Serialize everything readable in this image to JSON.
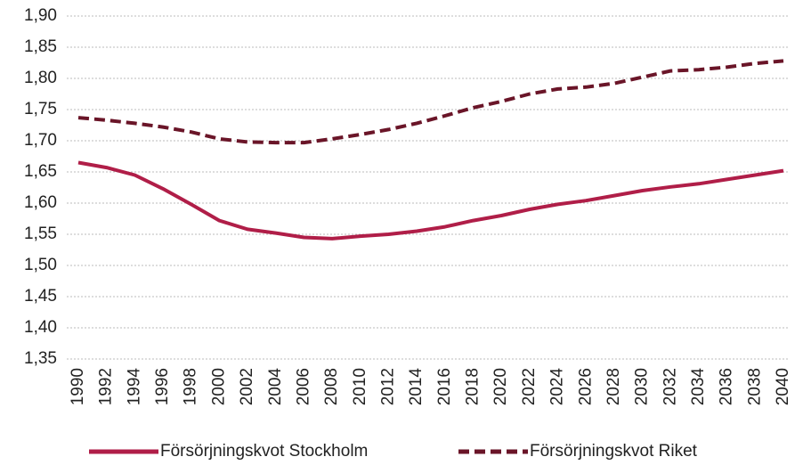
{
  "chart_data": {
    "type": "line",
    "categories": [
      "1990",
      "1992",
      "1994",
      "1996",
      "1998",
      "2000",
      "2002",
      "2004",
      "2006",
      "2008",
      "2010",
      "2012",
      "2014",
      "2016",
      "2018",
      "2020",
      "2022",
      "2024",
      "2026",
      "2028",
      "2030",
      "2032",
      "2034",
      "2036",
      "2038",
      "2040"
    ],
    "series": [
      {
        "name": "Försörjningskvot Stockholm",
        "color": "#b01e48",
        "style": "solid",
        "values": [
          1.665,
          1.657,
          1.645,
          1.623,
          1.598,
          1.572,
          1.558,
          1.552,
          1.545,
          1.543,
          1.547,
          1.55,
          1.555,
          1.562,
          1.572,
          1.58,
          1.59,
          1.598,
          1.604,
          1.612,
          1.62,
          1.626,
          1.631,
          1.638,
          1.645,
          1.652
        ]
      },
      {
        "name": "Försörjningskvot Riket",
        "color": "#6a1528",
        "style": "dashed",
        "values": [
          1.737,
          1.733,
          1.728,
          1.722,
          1.714,
          1.703,
          1.698,
          1.697,
          1.697,
          1.703,
          1.71,
          1.718,
          1.728,
          1.74,
          1.753,
          1.763,
          1.775,
          1.783,
          1.786,
          1.792,
          1.802,
          1.812,
          1.814,
          1.818,
          1.824,
          1.828
        ]
      }
    ],
    "ylim": [
      1.35,
      1.9
    ],
    "yticks": [
      {
        "value": 1.35,
        "label": "1,35"
      },
      {
        "value": 1.4,
        "label": "1,40"
      },
      {
        "value": 1.45,
        "label": "1,45"
      },
      {
        "value": 1.5,
        "label": "1,50"
      },
      {
        "value": 1.55,
        "label": "1,55"
      },
      {
        "value": 1.6,
        "label": "1,60"
      },
      {
        "value": 1.65,
        "label": "1,65"
      },
      {
        "value": 1.7,
        "label": "1,70"
      },
      {
        "value": 1.75,
        "label": "1,75"
      },
      {
        "value": 1.8,
        "label": "1,80"
      },
      {
        "value": 1.85,
        "label": "1,85"
      },
      {
        "value": 1.9,
        "label": "1,90"
      }
    ],
    "grid": true
  }
}
